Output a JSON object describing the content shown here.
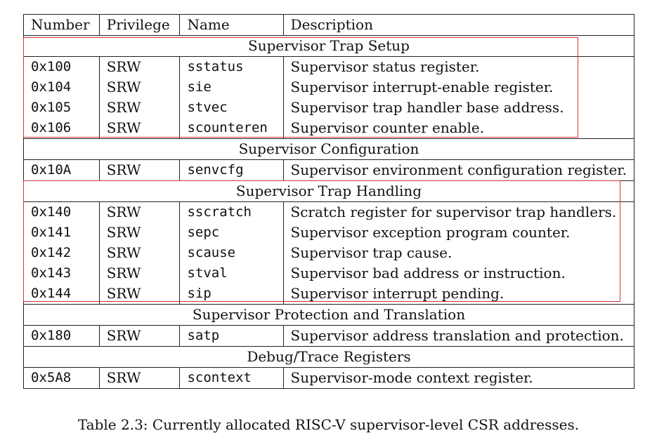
{
  "table": {
    "headers": [
      "Number",
      "Privilege",
      "Name",
      "Description"
    ],
    "sections": [
      {
        "title": "Supervisor Trap Setup",
        "rows": [
          {
            "number": "0x100",
            "privilege": "SRW",
            "name": "sstatus",
            "description": "Supervisor status register."
          },
          {
            "number": "0x104",
            "privilege": "SRW",
            "name": "sie",
            "description": "Supervisor interrupt-enable register."
          },
          {
            "number": "0x105",
            "privilege": "SRW",
            "name": "stvec",
            "description": "Supervisor trap handler base address."
          },
          {
            "number": "0x106",
            "privilege": "SRW",
            "name": "scounteren",
            "description": "Supervisor counter enable."
          }
        ]
      },
      {
        "title": "Supervisor Configuration",
        "rows": [
          {
            "number": "0x10A",
            "privilege": "SRW",
            "name": "senvcfg",
            "description": "Supervisor environment configuration register."
          }
        ]
      },
      {
        "title": "Supervisor Trap Handling",
        "rows": [
          {
            "number": "0x140",
            "privilege": "SRW",
            "name": "sscratch",
            "description": "Scratch register for supervisor trap handlers."
          },
          {
            "number": "0x141",
            "privilege": "SRW",
            "name": "sepc",
            "description": "Supervisor exception program counter."
          },
          {
            "number": "0x142",
            "privilege": "SRW",
            "name": "scause",
            "description": "Supervisor trap cause."
          },
          {
            "number": "0x143",
            "privilege": "SRW",
            "name": "stval",
            "description": "Supervisor bad address or instruction."
          },
          {
            "number": "0x144",
            "privilege": "SRW",
            "name": "sip",
            "description": "Supervisor interrupt pending."
          }
        ]
      },
      {
        "title": "Supervisor Protection and Translation",
        "rows": [
          {
            "number": "0x180",
            "privilege": "SRW",
            "name": "satp",
            "description": "Supervisor address translation and protection."
          }
        ]
      },
      {
        "title": "Debug/Trace Registers",
        "rows": [
          {
            "number": "0x5A8",
            "privilege": "SRW",
            "name": "scontext",
            "description": "Supervisor-mode context register."
          }
        ]
      }
    ]
  },
  "highlight_color": "#d63333",
  "caption": "Table 2.3: Currently allocated RISC-V supervisor-level CSR addresses."
}
